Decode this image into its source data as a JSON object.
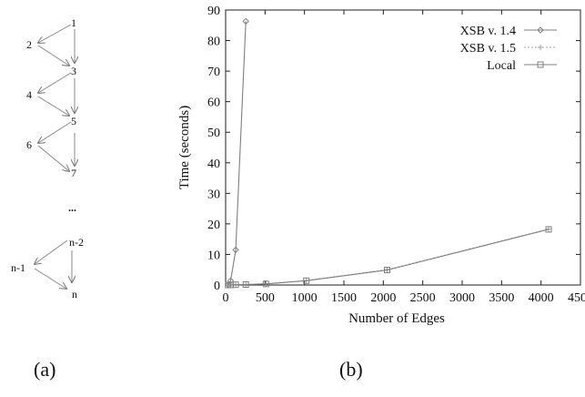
{
  "panel_a": {
    "caption": "(a)",
    "nodes": [
      "1",
      "2",
      "3",
      "4",
      "5",
      "6",
      "7",
      "...",
      "n-2",
      "n-1",
      "n"
    ]
  },
  "panel_b": {
    "caption": "(b)"
  },
  "chart_data": {
    "type": "line",
    "title": "",
    "xlabel": "Number of Edges",
    "ylabel": "Time (seconds)",
    "xlim": [
      0,
      4500
    ],
    "ylim": [
      0,
      90
    ],
    "xticks": [
      "0",
      "500",
      "1000",
      "1500",
      "2000",
      "2500",
      "3000",
      "3500",
      "4000",
      "4500"
    ],
    "yticks": [
      "0",
      "10",
      "20",
      "30",
      "40",
      "50",
      "60",
      "70",
      "80",
      "90"
    ],
    "grid": false,
    "legend_position": "top-right",
    "series": [
      {
        "name": "XSB v. 1.4",
        "marker": "diamond",
        "color": "#808080",
        "dash": "solid",
        "points": [
          [
            32,
            0.02
          ],
          [
            64,
            1.4
          ],
          [
            128,
            11.5
          ],
          [
            256,
            86.3
          ]
        ]
      },
      {
        "name": "XSB v. 1.5",
        "marker": "plus",
        "color": "#a0a0a0",
        "dash": "dotted",
        "points": [
          [
            32,
            0.02
          ],
          [
            64,
            0.05
          ],
          [
            128,
            0.1
          ],
          [
            256,
            0.2
          ],
          [
            512,
            0.4
          ],
          [
            1024,
            1.5
          ],
          [
            2048,
            5.0
          ],
          [
            4096,
            18.3
          ]
        ]
      },
      {
        "name": "Local",
        "marker": "square",
        "color": "#808080",
        "dash": "solid",
        "points": [
          [
            32,
            0.01
          ],
          [
            64,
            0.03
          ],
          [
            128,
            0.08
          ],
          [
            256,
            0.15
          ],
          [
            512,
            0.35
          ],
          [
            1024,
            1.4
          ],
          [
            2048,
            4.9
          ],
          [
            4096,
            18.2
          ]
        ]
      }
    ]
  }
}
